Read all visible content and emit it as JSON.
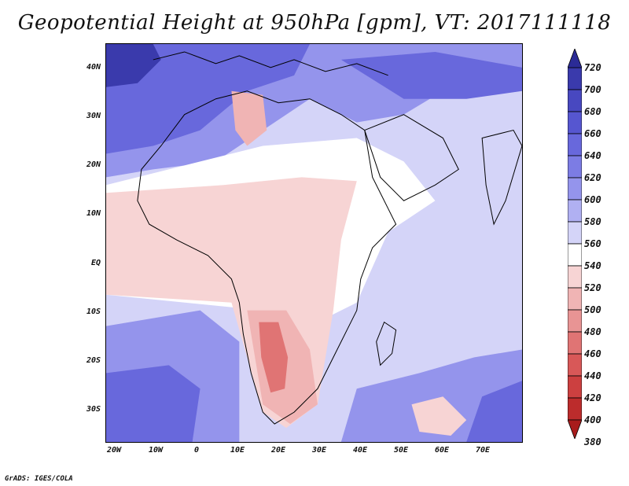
{
  "title": "Geopotential Height at 950hPa [gpm], VT: 2017111118",
  "footer": "GrADS: IGES/COLA",
  "map": {
    "region": "Africa and Middle East",
    "lat_labels": [
      "40N",
      "30N",
      "20N",
      "10N",
      "EQ",
      "10S",
      "20S",
      "30S"
    ],
    "lon_labels": [
      "20W",
      "10W",
      "0",
      "10E",
      "20E",
      "30E",
      "40E",
      "50E",
      "60E",
      "70E"
    ]
  },
  "colorbar": {
    "labels": [
      "720",
      "700",
      "680",
      "660",
      "640",
      "620",
      "600",
      "580",
      "560",
      "540",
      "520",
      "500",
      "480",
      "460",
      "440",
      "420",
      "400",
      "380"
    ],
    "colors": [
      "#2b2b96",
      "#3a3aac",
      "#4848c0",
      "#5656d0",
      "#6868dc",
      "#7c7ce4",
      "#9494ec",
      "#b0b0f2",
      "#d4d4f8",
      "#ffffff",
      "#f7d4d4",
      "#f0b4b4",
      "#e89494",
      "#e07474",
      "#d85858",
      "#cc4040",
      "#bc2c2c",
      "#a81c1c"
    ]
  },
  "field_colors": {
    "deep_blue": "#3a3aac",
    "mid_blue": "#6868dc",
    "light_blue": "#9494ec",
    "pale_blue": "#d4d4f8",
    "white": "#ffffff",
    "pale_pink": "#f7d4d4",
    "pink": "#f0b4b4",
    "rose": "#e07474"
  }
}
